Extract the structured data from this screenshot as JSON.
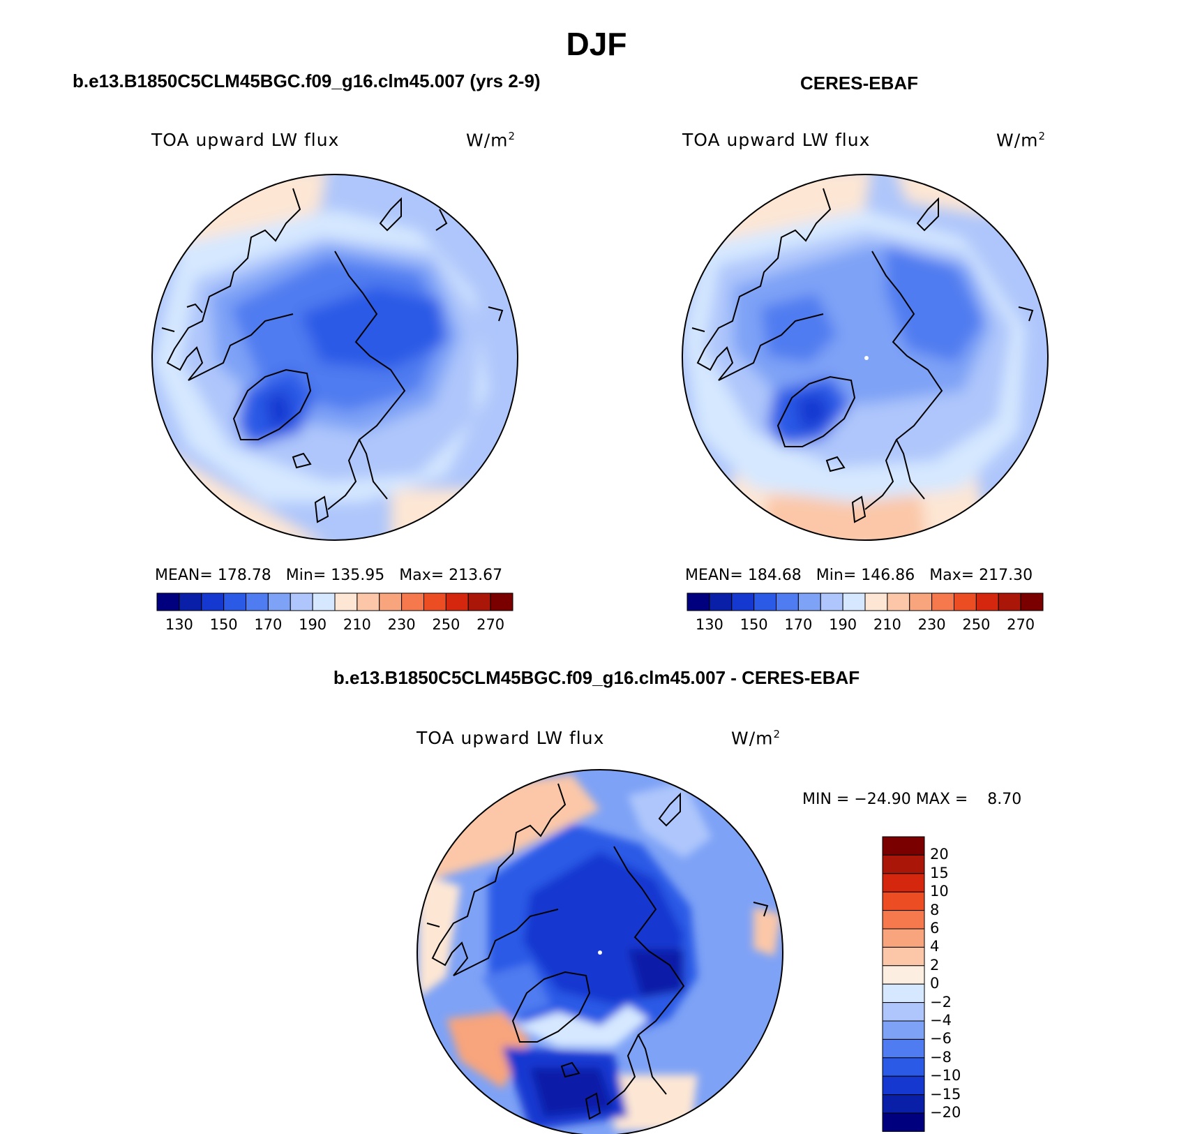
{
  "figure": {
    "title": "DJF",
    "colors": {
      "ocean_low": "#1f3fd0",
      "land_deep": "#0b22b6",
      "coast": "#000000"
    }
  },
  "panel_model": {
    "heading": "b.e13.B1850C5CLM45BGC.f09_g16.clm45.007 (yrs 2-9)",
    "variable": "TOA upward LW flux",
    "units": "W/m",
    "units_exp": "2",
    "mean_label": "MEAN=",
    "mean_value": "178.78",
    "min_label": "Min=",
    "min_value": "135.95",
    "max_label": "Max=",
    "max_value": "213.67",
    "ticks": [
      "130",
      "150",
      "170",
      "190",
      "210",
      "230",
      "250",
      "270"
    ]
  },
  "panel_obs": {
    "heading": "CERES-EBAF",
    "variable": "TOA upward LW flux",
    "units": "W/m",
    "units_exp": "2",
    "mean_label": "MEAN=",
    "mean_value": "184.68",
    "min_label": "Min=",
    "min_value": "146.86",
    "max_label": "Max=",
    "max_value": "217.30",
    "ticks": [
      "130",
      "150",
      "170",
      "190",
      "210",
      "230",
      "250",
      "270"
    ]
  },
  "panel_diff": {
    "heading": "b.e13.B1850C5CLM45BGC.f09_g16.clm45.007 - CERES-EBAF",
    "variable": "TOA upward LW flux",
    "units": "W/m",
    "units_exp": "2",
    "min_label": "MIN =",
    "min_value": "−24.90",
    "max_label": "MAX =",
    "max_value": "8.70",
    "ticks": [
      "20",
      "15",
      "10",
      "8",
      "6",
      "4",
      "2",
      "0",
      "−2",
      "−4",
      "−6",
      "−8",
      "−10",
      "−15",
      "−20"
    ]
  },
  "chart_data": {
    "type": "heatmap",
    "projection": "north polar stereographic",
    "season": "DJF",
    "panels": [
      {
        "name": "model",
        "mean": 178.78,
        "min": 135.95,
        "max": 213.67,
        "levels": [
          130,
          140,
          150,
          160,
          170,
          180,
          190,
          200,
          210,
          220,
          230,
          240,
          250,
          260,
          270
        ]
      },
      {
        "name": "CERES-EBAF",
        "mean": 184.68,
        "min": 146.86,
        "max": 217.3,
        "levels": [
          130,
          140,
          150,
          160,
          170,
          180,
          190,
          200,
          210,
          220,
          230,
          240,
          250,
          260,
          270
        ]
      },
      {
        "name": "difference",
        "min": -24.9,
        "max": 8.7,
        "levels": [
          -20,
          -15,
          -10,
          -8,
          -6,
          -4,
          -2,
          0,
          2,
          4,
          6,
          8,
          10,
          15,
          20
        ]
      }
    ],
    "abs_colors": [
      "#00007f",
      "#0a1fa8",
      "#1438d0",
      "#2a5ae6",
      "#4f7cf0",
      "#7ea2f6",
      "#aec6fb",
      "#d6e8ff",
      "#fde6d4",
      "#fbc7a8",
      "#f8a47c",
      "#f5794d",
      "#ed4d23",
      "#d4270e",
      "#aa1607",
      "#7a0000"
    ],
    "diff_colors": [
      "#00007f",
      "#0a1fa8",
      "#1438d0",
      "#2a5ae6",
      "#4f7cf0",
      "#7ea2f6",
      "#aec6fb",
      "#d6e8ff",
      "#fdeee2",
      "#fbc7a8",
      "#f8a47c",
      "#f5794d",
      "#ed4d23",
      "#d4270e",
      "#aa1607",
      "#7a0000"
    ]
  }
}
